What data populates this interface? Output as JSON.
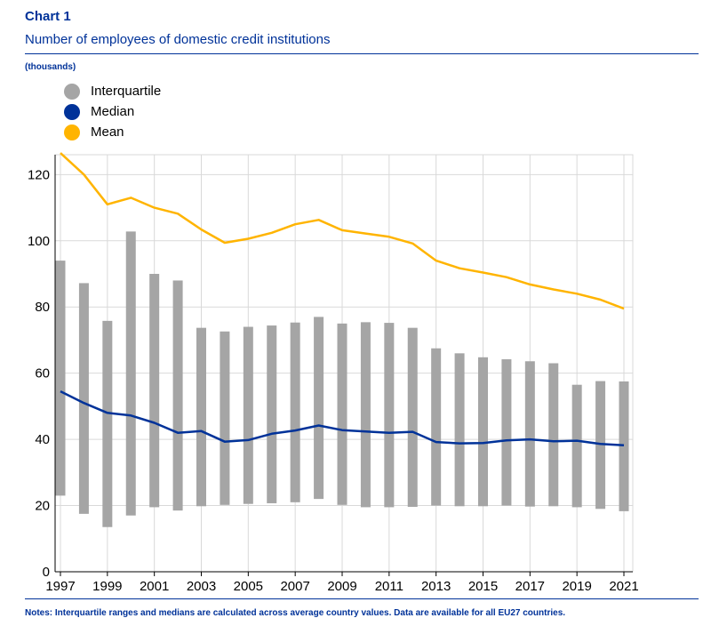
{
  "header": {
    "title": "Chart 1",
    "subtitle": "Number of employees of domestic credit institutions",
    "unit": "(thousands)"
  },
  "notes": "Notes: Interquartile ranges and medians are calculated across average country values. Data are available for all EU27 countries.",
  "colors": {
    "brand": "#003299",
    "interquartile": "#a5a5a5",
    "median": "#003299",
    "mean": "#ffb400",
    "grid": "#d9d9d9"
  },
  "chart_data": {
    "type": "bar",
    "title": "Number of employees of domestic credit institutions",
    "ylabel": "(thousands)",
    "xlabel": "",
    "ylim": [
      0,
      126
    ],
    "yticks": [
      "0",
      "20",
      "40",
      "60",
      "80",
      "100",
      "120"
    ],
    "grid": true,
    "legend_position": "top-left",
    "x": [
      1997,
      1998,
      1999,
      2000,
      2001,
      2002,
      2003,
      2004,
      2005,
      2006,
      2007,
      2008,
      2009,
      2010,
      2011,
      2012,
      2013,
      2014,
      2015,
      2016,
      2017,
      2018,
      2019,
      2020,
      2021
    ],
    "xticks": [
      "1997",
      "1999",
      "2001",
      "2003",
      "2005",
      "2007",
      "2009",
      "2011",
      "2013",
      "2015",
      "2017",
      "2019",
      "2021"
    ],
    "series": [
      {
        "name": "Interquartile",
        "type": "range-bar",
        "low": [
          23.0,
          17.5,
          13.5,
          17.0,
          19.5,
          18.5,
          19.8,
          20.2,
          20.5,
          20.7,
          21.0,
          22.0,
          20.2,
          19.5,
          19.5,
          19.6,
          20.0,
          19.8,
          19.8,
          20.0,
          19.7,
          19.8,
          19.5,
          19.0,
          18.3
        ],
        "high": [
          94.0,
          87.2,
          75.8,
          102.8,
          90.0,
          88.0,
          73.7,
          72.6,
          74.0,
          74.4,
          75.3,
          77.0,
          75.0,
          75.4,
          75.2,
          73.7,
          67.5,
          66.0,
          64.8,
          64.2,
          63.6,
          63.0,
          56.5,
          57.6,
          57.5
        ]
      },
      {
        "name": "Median",
        "type": "line",
        "values": [
          54.5,
          51.0,
          48.0,
          47.2,
          45.0,
          42.0,
          42.5,
          39.3,
          39.8,
          41.7,
          42.7,
          44.2,
          42.8,
          42.4,
          42.0,
          42.3,
          39.2,
          38.8,
          38.9,
          39.7,
          40.0,
          39.4,
          39.6,
          38.6,
          38.2
        ]
      },
      {
        "name": "Mean",
        "type": "line",
        "values": [
          126.5,
          120.0,
          111.0,
          113.0,
          110.0,
          108.2,
          103.4,
          99.4,
          100.6,
          102.4,
          105.0,
          106.3,
          103.2,
          102.2,
          101.2,
          99.2,
          94.0,
          91.7,
          90.4,
          89.0,
          86.8,
          85.3,
          84.0,
          82.2,
          79.5
        ]
      }
    ]
  }
}
